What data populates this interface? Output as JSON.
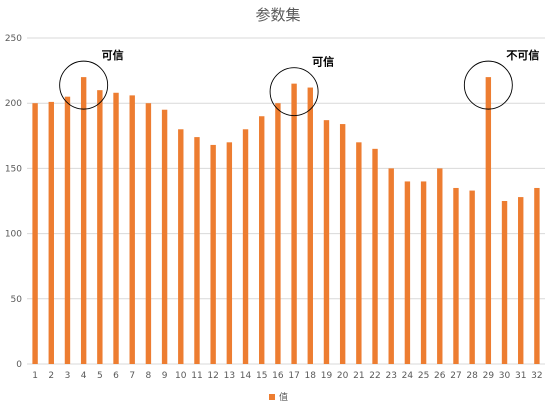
{
  "chart_data": {
    "type": "bar",
    "title": "参数集",
    "categories": [
      "1",
      "2",
      "3",
      "4",
      "5",
      "6",
      "7",
      "8",
      "9",
      "10",
      "11",
      "12",
      "13",
      "14",
      "15",
      "16",
      "17",
      "18",
      "19",
      "20",
      "21",
      "22",
      "23",
      "24",
      "25",
      "26",
      "27",
      "28",
      "29",
      "30",
      "31",
      "32"
    ],
    "series": [
      {
        "name": "值",
        "color": "#ED7D31",
        "values": [
          200,
          201,
          205,
          220,
          210,
          208,
          206,
          200,
          195,
          180,
          174,
          168,
          170,
          180,
          190,
          200,
          215,
          212,
          187,
          184,
          170,
          165,
          150,
          140,
          140,
          150,
          135,
          133,
          220,
          125,
          128,
          135
        ]
      }
    ],
    "ylim": [
      0,
      250
    ],
    "yticks": [
      "0",
      "50",
      "100",
      "150",
      "200",
      "250"
    ],
    "grid": true,
    "legend_position": "bottom",
    "annotations": [
      {
        "label": "可信",
        "category": "4"
      },
      {
        "label": "可信",
        "category": "17"
      },
      {
        "label": "不可信",
        "category": "29"
      }
    ]
  }
}
